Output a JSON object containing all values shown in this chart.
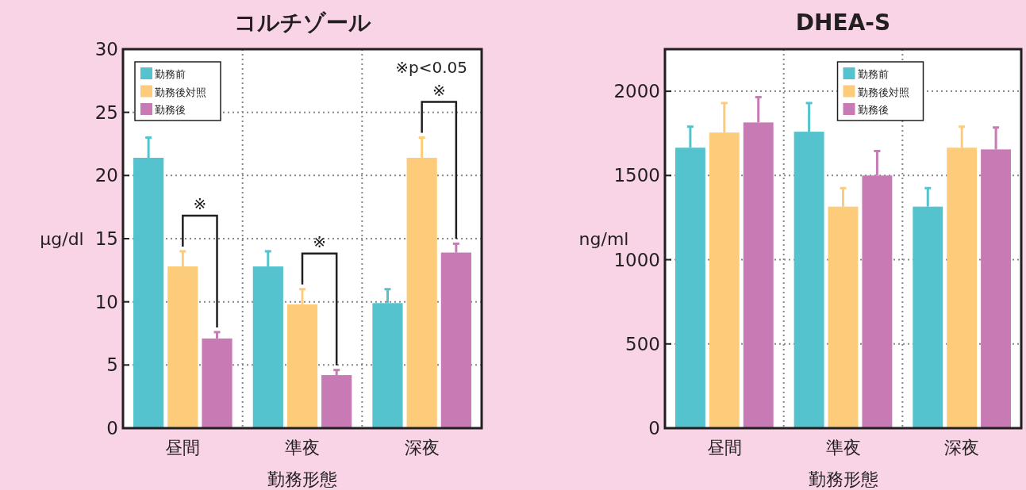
{
  "chart_data": [
    {
      "type": "bar",
      "title": "コルチゾール",
      "xlabel": "勤務形態",
      "ylabel": "μg/dl",
      "categories": [
        "昼間",
        "準夜",
        "深夜"
      ],
      "series": [
        {
          "name": "勤務前",
          "color": "#55c3cd",
          "values": [
            21.4,
            12.8,
            9.9
          ],
          "errors": [
            [
              21.4,
              23.0
            ],
            [
              12.8,
              14.0
            ],
            [
              9.9,
              11.0
            ]
          ]
        },
        {
          "name": "勤務後対照",
          "color": "#fdcc7a",
          "values": [
            12.8,
            9.8,
            21.4
          ],
          "errors": [
            [
              12.8,
              14.0
            ],
            [
              9.8,
              11.0
            ],
            [
              21.4,
              23.0
            ]
          ]
        },
        {
          "name": "勤務後",
          "color": "#c77ab3",
          "values": [
            7.1,
            4.2,
            13.9
          ],
          "errors": [
            [
              7.1,
              7.6
            ],
            [
              4.2,
              4.6
            ],
            [
              13.9,
              14.6
            ]
          ]
        }
      ],
      "ylim": [
        0,
        30
      ],
      "yticks": [
        0,
        5,
        10,
        15,
        20,
        25,
        30
      ],
      "grid": true,
      "legend": "top left",
      "annotations": [
        "※",
        "※",
        "※",
        "※p<0.05"
      ]
    },
    {
      "type": "bar",
      "title": "DHEA-S",
      "xlabel": "勤務形態",
      "ylabel": "ng/ml",
      "categories": [
        "昼間",
        "準夜",
        "深夜"
      ],
      "series": [
        {
          "name": "勤務前",
          "color": "#55c3cd",
          "values": [
            1665,
            1760,
            1315
          ],
          "errors": [
            [
              1665,
              1790
            ],
            [
              1760,
              1930
            ],
            [
              1315,
              1425
            ]
          ]
        },
        {
          "name": "勤務後対照",
          "color": "#fdcc7a",
          "values": [
            1755,
            1315,
            1665
          ],
          "errors": [
            [
              1755,
              1930
            ],
            [
              1315,
              1425
            ],
            [
              1665,
              1790
            ]
          ]
        },
        {
          "name": "勤務後",
          "color": "#c77ab3",
          "values": [
            1815,
            1500,
            1655
          ],
          "errors": [
            [
              1815,
              1965
            ],
            [
              1500,
              1645
            ],
            [
              1655,
              1785
            ]
          ]
        }
      ],
      "ylim": [
        0,
        2250
      ],
      "yticks": [
        0,
        500,
        1000,
        1500,
        2000
      ],
      "grid": true,
      "legend": "top"
    }
  ]
}
